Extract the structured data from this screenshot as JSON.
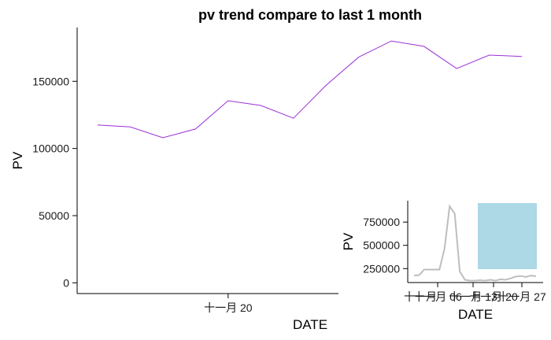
{
  "chart_data": [
    {
      "type": "line",
      "title": "pv trend compare to last 1 month",
      "xlabel": "DATE",
      "ylabel": "PV",
      "x_tick_labels": [
        "十一月 20",
        "十一月 27"
      ],
      "y_ticks": [
        0,
        50000,
        100000,
        150000
      ],
      "y_tick_labels": [
        "0",
        "50000",
        "100000",
        "150000"
      ],
      "ylim": [
        -8000,
        190000
      ],
      "grid": false,
      "series": [
        {
          "color": "#9b30d9",
          "x": [
            "11-16",
            "11-17",
            "11-18",
            "11-19",
            "11-20",
            "11-21",
            "11-22",
            "11-23",
            "11-24",
            "11-25",
            "11-26",
            "11-27",
            "11-28",
            "11-29"
          ],
          "values": [
            117500,
            116000,
            108000,
            114500,
            135500,
            132000,
            122500,
            147000,
            168000,
            180000,
            176000,
            159500,
            169500,
            168500
          ]
        }
      ]
    },
    {
      "type": "line",
      "xlabel": "DATE",
      "ylabel": "PV",
      "x_tick_labels": [
        "十一月 06",
        "十一月 13",
        "十一月 20",
        "十一月 27"
      ],
      "x_tick_prefix_label": "十一月",
      "y_ticks": [
        250000,
        500000,
        750000
      ],
      "y_tick_labels": [
        "250000",
        "500000",
        "750000"
      ],
      "ylim": [
        100000,
        980000
      ],
      "grid": false,
      "highlight_color": "#add8e6",
      "series": [
        {
          "color": "#bebebe",
          "values": [
            175000,
            180000,
            240000,
            240000,
            240000,
            240000,
            470000,
            920000,
            840000,
            220000,
            130000,
            120000,
            120000,
            125000,
            120000,
            130000,
            120000,
            135000,
            130000,
            145000,
            165000,
            170000,
            160000,
            175000,
            168000
          ]
        }
      ]
    }
  ]
}
